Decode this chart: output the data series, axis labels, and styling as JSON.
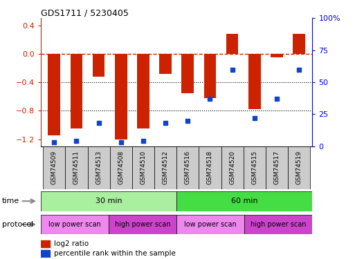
{
  "title": "GDS1711 / 5230405",
  "samples": [
    "GSM74509",
    "GSM74511",
    "GSM74513",
    "GSM74508",
    "GSM74510",
    "GSM74512",
    "GSM74516",
    "GSM74518",
    "GSM74520",
    "GSM74515",
    "GSM74517",
    "GSM74519"
  ],
  "log2_ratio": [
    -1.15,
    -1.05,
    -0.32,
    -1.2,
    -1.05,
    -0.28,
    -0.55,
    -0.62,
    0.28,
    -0.78,
    -0.05,
    0.28
  ],
  "percentile_rank": [
    3,
    4,
    18,
    3,
    4,
    18,
    20,
    37,
    60,
    22,
    37,
    60
  ],
  "ylim_left": [
    -1.3,
    0.5
  ],
  "ylim_right": [
    0,
    100
  ],
  "bar_color": "#cc2200",
  "dot_color": "#1144cc",
  "hline_y": 0,
  "dotted_lines": [
    -0.4,
    -0.8
  ],
  "right_ticks": [
    0,
    25,
    50,
    75,
    100
  ],
  "right_tick_labels": [
    "0",
    "25",
    "50",
    "75",
    "100%"
  ],
  "left_ticks": [
    0.4,
    0.0,
    -0.4,
    -0.8,
    -1.2
  ],
  "time_groups": [
    {
      "label": "30 min",
      "start": 0,
      "end": 6,
      "color": "#aaeea0"
    },
    {
      "label": "60 min",
      "start": 6,
      "end": 12,
      "color": "#44dd44"
    }
  ],
  "protocol_groups": [
    {
      "label": "low power scan",
      "start": 0,
      "end": 3,
      "color": "#ee88ee"
    },
    {
      "label": "high power scan",
      "start": 3,
      "end": 6,
      "color": "#cc44cc"
    },
    {
      "label": "low power scan",
      "start": 6,
      "end": 9,
      "color": "#ee88ee"
    },
    {
      "label": "high power scan",
      "start": 9,
      "end": 12,
      "color": "#cc44cc"
    }
  ],
  "legend_bar_color": "#cc2200",
  "legend_dot_color": "#1144cc",
  "legend_bar_label": "log2 ratio",
  "legend_dot_label": "percentile rank within the sample",
  "background_color": "#ffffff",
  "plot_bg_color": "#ffffff",
  "tick_color_left": "#cc2200",
  "tick_color_right": "#0000cc",
  "xtick_bg_color": "#cccccc",
  "time_label": "time",
  "protocol_label": "protocol"
}
